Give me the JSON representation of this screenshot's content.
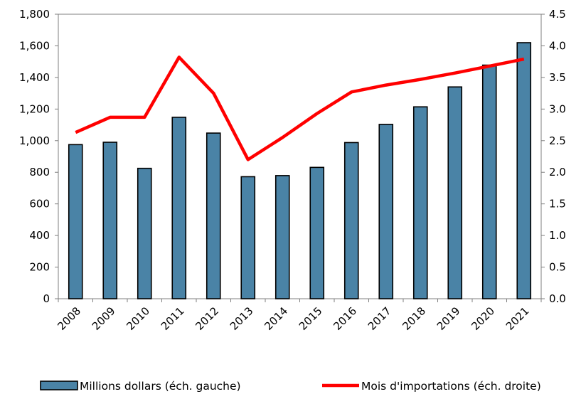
{
  "chart_data": {
    "type": "bar",
    "title": "",
    "categories": [
      "2008",
      "2009",
      "2010",
      "2011",
      "2012",
      "2013",
      "2014",
      "2015",
      "2016",
      "2017",
      "2018",
      "2019",
      "2020",
      "2021"
    ],
    "series": [
      {
        "name": "Millions dollars (éch. gauche)",
        "type": "bar",
        "axis": "left",
        "color": "#4a83a6",
        "values": [
          975,
          990,
          825,
          1148,
          1048,
          772,
          779,
          831,
          988,
          1103,
          1214,
          1340,
          1478,
          1620
        ]
      },
      {
        "name": "Mois d'importations (éch. droite)",
        "type": "line",
        "axis": "right",
        "color": "#ff0000",
        "values": [
          2.63,
          2.87,
          2.87,
          3.82,
          3.25,
          2.2,
          2.55,
          2.93,
          3.27,
          3.38,
          3.47,
          3.57,
          3.68,
          3.79
        ]
      }
    ],
    "y_left": {
      "ylim": [
        0,
        1800
      ],
      "ticks": [
        0,
        200,
        400,
        600,
        800,
        1000,
        1200,
        1400,
        1600,
        1800
      ],
      "tick_labels": [
        "0",
        "200",
        "400",
        "600",
        "800",
        "1,000",
        "1,200",
        "1,400",
        "1,600",
        "1,800"
      ]
    },
    "y_right": {
      "ylim": [
        0,
        4.5
      ],
      "ticks": [
        0,
        0.5,
        1.0,
        1.5,
        2.0,
        2.5,
        3.0,
        3.5,
        4.0,
        4.5
      ],
      "tick_labels": [
        "0.0",
        "0.5",
        "1.0",
        "1.5",
        "2.0",
        "2.5",
        "3.0",
        "3.5",
        "4.0",
        "4.5"
      ]
    },
    "xlabel": "",
    "ylabel": "",
    "grid": false,
    "legend_position": "bottom"
  }
}
